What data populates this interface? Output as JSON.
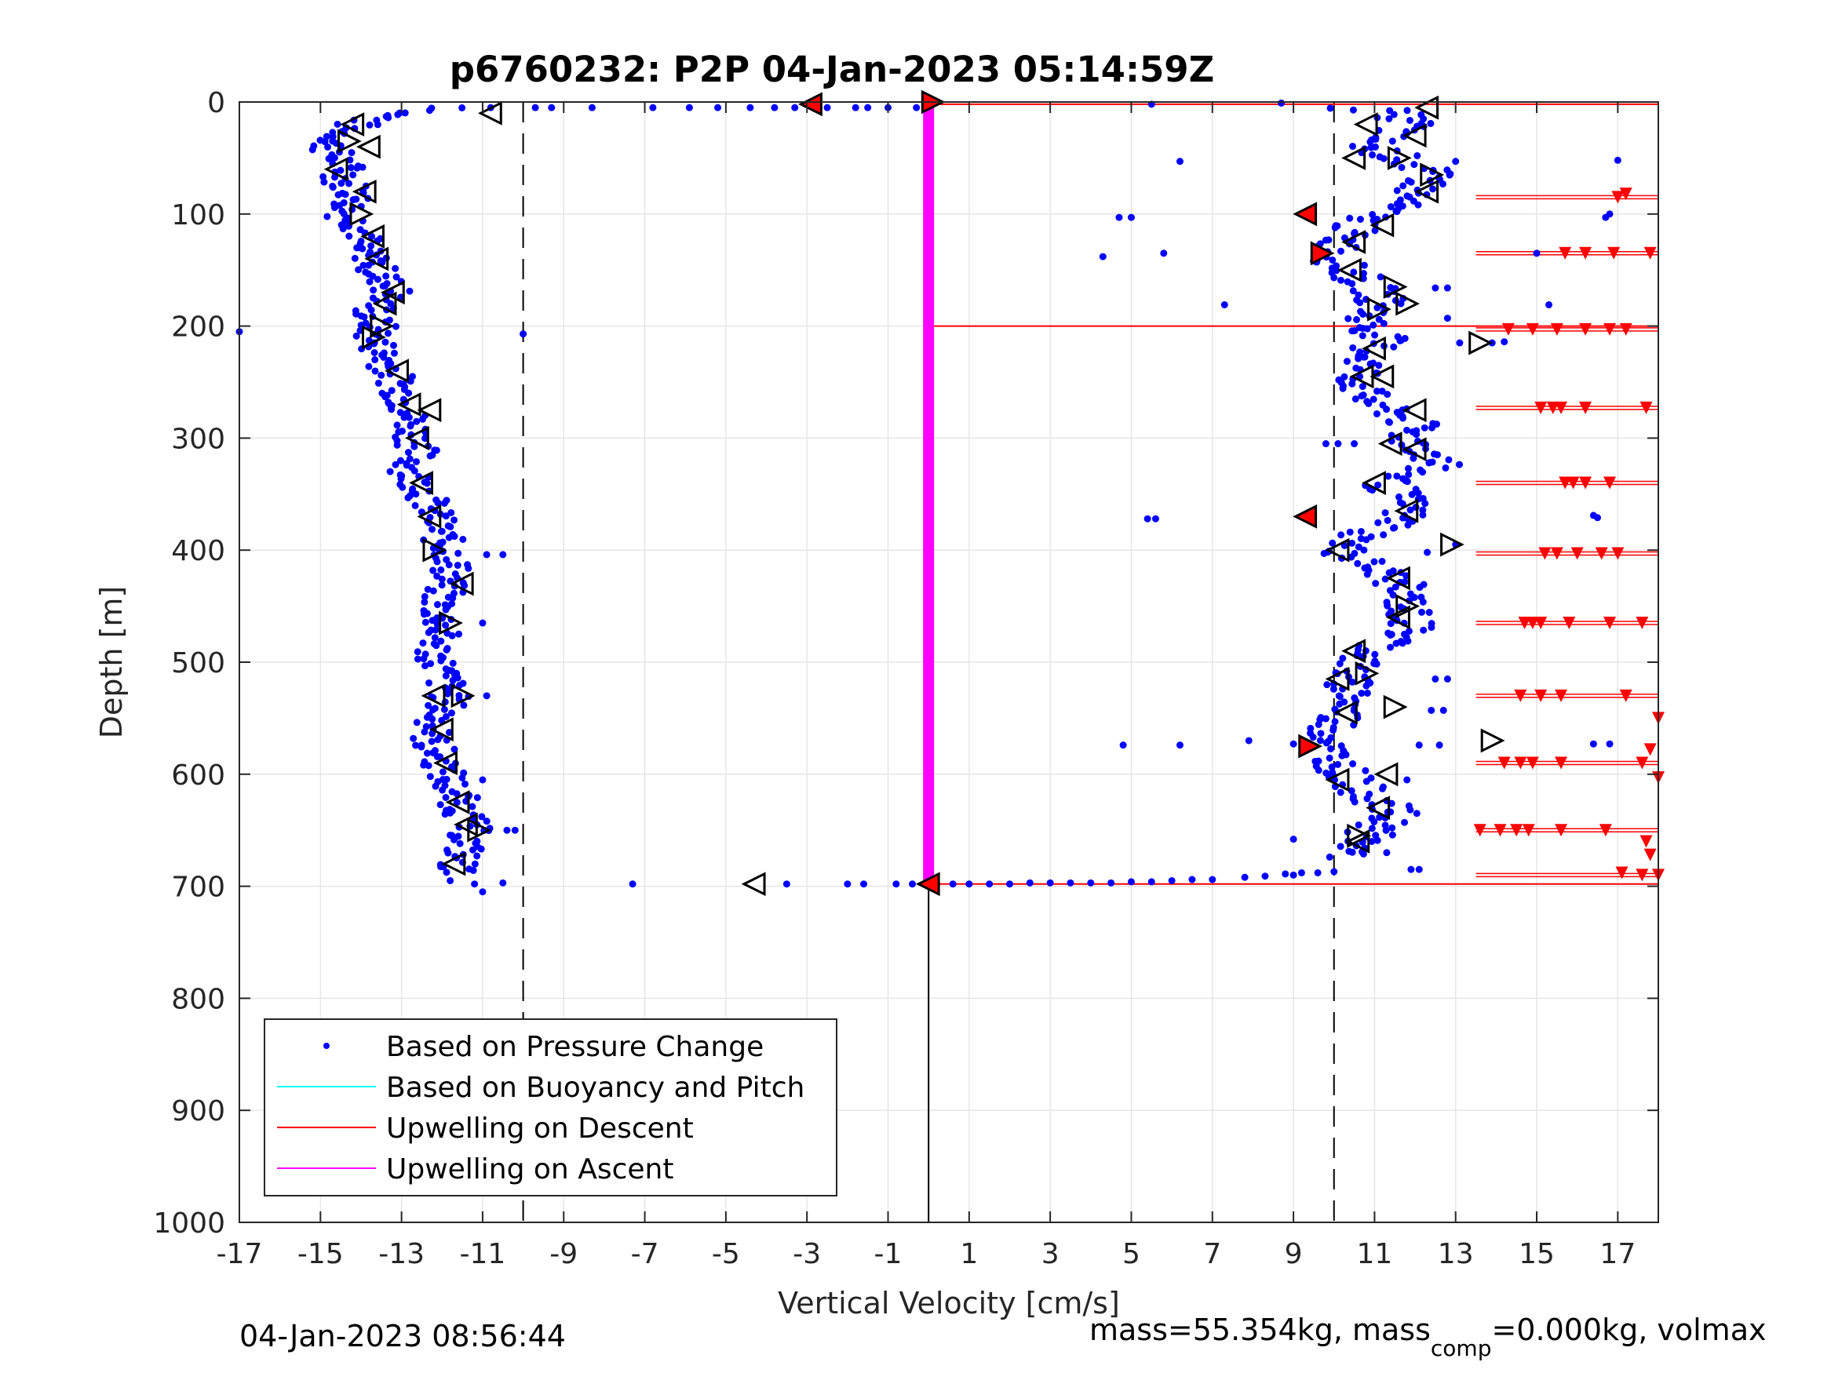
{
  "chart_data": {
    "type": "scatter",
    "title": "p6760232: P2P 04-Jan-2023 05:14:59Z",
    "xlabel": "Vertical Velocity [cm/s]",
    "ylabel": "Depth [m]",
    "xlim": [
      -17,
      18
    ],
    "ylim": [
      0,
      1000
    ],
    "y_reversed": true,
    "xticks": [
      -17,
      -15,
      -13,
      -11,
      -9,
      -7,
      -5,
      -3,
      -1,
      1,
      3,
      5,
      7,
      9,
      11,
      13,
      15,
      17
    ],
    "yticks": [
      0,
      100,
      200,
      300,
      400,
      500,
      600,
      700,
      800,
      900,
      1000
    ],
    "grid": true,
    "legend_position": "bottom-left",
    "colors": {
      "pressure": "#0000ff",
      "buoyancy": "#00ffff",
      "upwelling_descent": "#ff0000",
      "upwelling_ascent": "#ff00ff",
      "marker_fill": "#ffffff",
      "marker_stroke": "#000000"
    },
    "legend": [
      {
        "label": "Based on Pressure Change",
        "style": "dot",
        "color": "#0000ff"
      },
      {
        "label": "Based on Buoyancy and Pitch",
        "style": "line",
        "color": "#00ffff"
      },
      {
        "label": "Upwelling on Descent",
        "style": "line",
        "color": "#ff0000"
      },
      {
        "label": "Upwelling on Ascent",
        "style": "line",
        "color": "#ff00ff"
      }
    ],
    "reference_lines": {
      "dashed_x": [
        -10,
        10
      ],
      "solid_x": 0,
      "solid_x_ymin": 700
    },
    "upwelling_ascent": {
      "x": 0,
      "y_range": [
        0,
        700
      ]
    },
    "upwelling_descent_lines": [
      2,
      698,
      200
    ],
    "descent_profile": [
      [
        -11.5,
        5
      ],
      [
        -13,
        10
      ],
      [
        -13.5,
        15
      ],
      [
        -14.2,
        20
      ],
      [
        -14.5,
        30
      ],
      [
        -14.8,
        40
      ],
      [
        -14.6,
        50
      ],
      [
        -14.3,
        60
      ],
      [
        -14.5,
        70
      ],
      [
        -14.1,
        80
      ],
      [
        -14.2,
        90
      ],
      [
        -14.4,
        100
      ],
      [
        -14,
        110
      ],
      [
        -13.9,
        120
      ],
      [
        -14.1,
        130
      ],
      [
        -13.7,
        140
      ],
      [
        -13.6,
        150
      ],
      [
        -13.4,
        160
      ],
      [
        -13.2,
        170
      ],
      [
        -13.5,
        180
      ],
      [
        -13.8,
        190
      ],
      [
        -13.6,
        200
      ],
      [
        -13.7,
        210
      ],
      [
        -13.4,
        230
      ],
      [
        -13.1,
        250
      ],
      [
        -12.9,
        270
      ],
      [
        -12.7,
        290
      ],
      [
        -12.6,
        310
      ],
      [
        -12.8,
        330
      ],
      [
        -12.4,
        350
      ],
      [
        -12.2,
        370
      ],
      [
        -12,
        390
      ],
      [
        -11.7,
        410
      ],
      [
        -11.9,
        430
      ],
      [
        -12.1,
        450
      ],
      [
        -12,
        470
      ],
      [
        -12.2,
        490
      ],
      [
        -12,
        510
      ],
      [
        -11.8,
        530
      ],
      [
        -12.1,
        550
      ],
      [
        -12.3,
        570
      ],
      [
        -12,
        590
      ],
      [
        -11.8,
        610
      ],
      [
        -11.5,
        630
      ],
      [
        -11.3,
        650
      ],
      [
        -11.5,
        670
      ],
      [
        -11.7,
        690
      ]
    ],
    "ascent_profile": [
      [
        10.5,
        5
      ],
      [
        11.5,
        10
      ],
      [
        12,
        20
      ],
      [
        11.2,
        30
      ],
      [
        10.8,
        40
      ],
      [
        11.6,
        50
      ],
      [
        12.2,
        60
      ],
      [
        12.4,
        70
      ],
      [
        12,
        80
      ],
      [
        11.6,
        90
      ],
      [
        11,
        100
      ],
      [
        10.6,
        110
      ],
      [
        10.2,
        120
      ],
      [
        10.1,
        130
      ],
      [
        10,
        140
      ],
      [
        10.3,
        150
      ],
      [
        10.7,
        160
      ],
      [
        11.1,
        170
      ],
      [
        11.2,
        180
      ],
      [
        10.9,
        190
      ],
      [
        10.8,
        200
      ],
      [
        11.2,
        210
      ],
      [
        10.8,
        230
      ],
      [
        10.6,
        250
      ],
      [
        10.8,
        265
      ],
      [
        11.6,
        280
      ],
      [
        12,
        290
      ],
      [
        11.8,
        300
      ],
      [
        12.3,
        310
      ],
      [
        12.5,
        325
      ],
      [
        11.3,
        340
      ],
      [
        11.8,
        360
      ],
      [
        11.6,
        375
      ],
      [
        10.5,
        390
      ],
      [
        10.2,
        400
      ],
      [
        10.6,
        410
      ],
      [
        11.2,
        420
      ],
      [
        11.6,
        430
      ],
      [
        11.8,
        450
      ],
      [
        11.9,
        470
      ],
      [
        11.5,
        480
      ],
      [
        11,
        490
      ],
      [
        10.6,
        500
      ],
      [
        10.3,
        515
      ],
      [
        10.5,
        530
      ],
      [
        10.2,
        545
      ],
      [
        10,
        560
      ],
      [
        9.8,
        575
      ],
      [
        10.1,
        590
      ],
      [
        10.3,
        600
      ],
      [
        10.7,
        615
      ],
      [
        11.1,
        625
      ],
      [
        11.5,
        635
      ],
      [
        11.2,
        645
      ],
      [
        10.8,
        655
      ],
      [
        10.5,
        665
      ],
      [
        10.4,
        675
      ]
    ],
    "surface_points": [
      [
        -10.8,
        5
      ],
      [
        -9.7,
        5
      ],
      [
        -9.3,
        5
      ],
      [
        -8.3,
        5
      ],
      [
        -6.8,
        5
      ],
      [
        -5.9,
        5
      ],
      [
        -5.2,
        5
      ],
      [
        -4.4,
        5
      ],
      [
        -3.8,
        5
      ],
      [
        -3.3,
        5
      ],
      [
        -2.5,
        5
      ],
      [
        -1.8,
        5
      ],
      [
        -1.5,
        5
      ],
      [
        -1,
        5
      ],
      [
        -0.3,
        5
      ],
      [
        0,
        0
      ]
    ],
    "bottom_points": [
      [
        -11.8,
        695
      ],
      [
        -11.2,
        698
      ],
      [
        -7.3,
        698
      ],
      [
        -3.5,
        698
      ],
      [
        -2,
        698
      ],
      [
        -1.6,
        698
      ],
      [
        -0.8,
        698
      ],
      [
        -0.4,
        698
      ],
      [
        0.2,
        698
      ],
      [
        0.6,
        698
      ],
      [
        1,
        698
      ],
      [
        1.5,
        698
      ],
      [
        2,
        698
      ],
      [
        2.5,
        697
      ],
      [
        3,
        697
      ],
      [
        3.5,
        697
      ],
      [
        4,
        697
      ],
      [
        4.5,
        697
      ],
      [
        5,
        696
      ],
      [
        5.5,
        696
      ],
      [
        6,
        695
      ],
      [
        6.5,
        694
      ],
      [
        7,
        694
      ],
      [
        7.8,
        692
      ],
      [
        8.3,
        691
      ],
      [
        8.8,
        689
      ],
      [
        9.2,
        688
      ],
      [
        9.6,
        688
      ],
      [
        10,
        687
      ],
      [
        11.9,
        685
      ]
    ],
    "outlier_points": [
      [
        -17,
        205
      ],
      [
        -10,
        207
      ],
      [
        -10.2,
        650
      ],
      [
        -10.4,
        650
      ],
      [
        -10.5,
        404
      ],
      [
        -10.9,
        404
      ],
      [
        -11,
        465
      ],
      [
        -10.9,
        530
      ],
      [
        -11,
        605
      ],
      [
        -11,
        705
      ],
      [
        -10.5,
        697
      ],
      [
        4.3,
        138
      ],
      [
        4.7,
        103
      ],
      [
        5,
        103
      ],
      [
        5.5,
        2
      ],
      [
        6.2,
        53
      ],
      [
        5.8,
        135
      ],
      [
        7.3,
        181
      ],
      [
        8.7,
        1
      ],
      [
        5.4,
        372
      ],
      [
        5.6,
        372
      ],
      [
        4.8,
        574
      ],
      [
        6.2,
        574
      ],
      [
        7.9,
        570
      ],
      [
        9,
        573
      ],
      [
        9,
        658
      ],
      [
        9,
        690
      ],
      [
        12.8,
        193
      ],
      [
        13.1,
        215
      ],
      [
        13.9,
        215
      ],
      [
        14.2,
        214
      ],
      [
        12.8,
        166
      ],
      [
        12.5,
        166
      ],
      [
        13,
        53
      ],
      [
        15,
        135
      ],
      [
        15.3,
        181
      ],
      [
        16.4,
        369
      ],
      [
        16.5,
        371
      ],
      [
        17,
        52
      ],
      [
        16.8,
        100
      ],
      [
        16.7,
        103
      ],
      [
        13,
        395
      ],
      [
        12.3,
        402
      ],
      [
        12.5,
        515
      ],
      [
        12.8,
        515
      ],
      [
        12.4,
        543
      ],
      [
        12.7,
        543
      ],
      [
        12.6,
        574
      ],
      [
        12.1,
        574
      ],
      [
        11.8,
        605
      ],
      [
        11.3,
        670
      ],
      [
        12.1,
        685
      ],
      [
        16.4,
        573
      ],
      [
        16.8,
        573
      ],
      [
        10.5,
        305
      ],
      [
        10.1,
        305
      ],
      [
        9.8,
        305
      ]
    ],
    "descent_markers_up": [
      [
        -10.8,
        10
      ],
      [
        -14.2,
        20
      ],
      [
        -13.8,
        40
      ],
      [
        -14.6,
        60
      ],
      [
        -13.9,
        80
      ],
      [
        -13.7,
        120
      ],
      [
        -13.6,
        140
      ],
      [
        -13.2,
        170
      ],
      [
        -13.4,
        180
      ],
      [
        -13.1,
        240
      ],
      [
        -12.8,
        270
      ],
      [
        -12.3,
        275
      ],
      [
        -12.6,
        300
      ],
      [
        -12.5,
        340
      ],
      [
        -12.3,
        370
      ],
      [
        -11.5,
        430
      ],
      [
        -12.2,
        530
      ],
      [
        -12,
        560
      ],
      [
        -11.9,
        590
      ],
      [
        -11.6,
        625
      ],
      [
        -11.4,
        645
      ],
      [
        -11.7,
        680
      ],
      [
        -4.3,
        698
      ]
    ],
    "descent_markers_down": [
      [
        -14.3,
        35
      ],
      [
        -14,
        100
      ],
      [
        -13.5,
        200
      ],
      [
        -13.7,
        210
      ],
      [
        -12.2,
        400
      ],
      [
        -11.8,
        465
      ],
      [
        -11.5,
        530
      ],
      [
        -11.1,
        650
      ]
    ],
    "ascent_markers_up": [
      [
        12.3,
        5
      ],
      [
        10.8,
        20
      ],
      [
        12,
        30
      ],
      [
        10.5,
        50
      ],
      [
        12.3,
        80
      ],
      [
        11.2,
        110
      ],
      [
        10.5,
        125
      ],
      [
        10.4,
        150
      ],
      [
        11,
        220
      ],
      [
        10.7,
        245
      ],
      [
        11.2,
        245
      ],
      [
        12,
        275
      ],
      [
        11.4,
        305
      ],
      [
        12,
        310
      ],
      [
        11,
        340
      ],
      [
        11.8,
        365
      ],
      [
        10.1,
        400
      ],
      [
        11.6,
        425
      ],
      [
        11.6,
        460
      ],
      [
        10.5,
        490
      ],
      [
        10.1,
        515
      ],
      [
        10.3,
        545
      ],
      [
        10.1,
        605
      ],
      [
        11.1,
        630
      ],
      [
        10.6,
        660
      ],
      [
        11.3,
        600
      ]
    ],
    "ascent_markers_down": [
      [
        11.6,
        50
      ],
      [
        12.4,
        65
      ],
      [
        11.5,
        165
      ],
      [
        11.8,
        180
      ],
      [
        13.6,
        215
      ],
      [
        11.1,
        185
      ],
      [
        12.9,
        395
      ],
      [
        11.8,
        450
      ],
      [
        10.8,
        510
      ],
      [
        11.5,
        540
      ],
      [
        13.9,
        570
      ],
      [
        10.6,
        655
      ]
    ],
    "red_markers": [
      [
        -2.9,
        2
      ],
      [
        0.1,
        0
      ],
      [
        9.3,
        100
      ],
      [
        9.7,
        135
      ],
      [
        9.3,
        370
      ],
      [
        9.4,
        575
      ],
      [
        0,
        698
      ]
    ],
    "descent_triangles": [
      [
        17,
        85
      ],
      [
        17.2,
        82
      ],
      [
        15.7,
        135
      ],
      [
        16.2,
        135
      ],
      [
        16.9,
        135
      ],
      [
        17.8,
        135
      ],
      [
        14.3,
        203
      ],
      [
        14.9,
        203
      ],
      [
        15.5,
        203
      ],
      [
        16.2,
        203
      ],
      [
        16.8,
        203
      ],
      [
        17.2,
        203
      ],
      [
        15.1,
        273
      ],
      [
        15.4,
        273
      ],
      [
        15.6,
        273
      ],
      [
        16.2,
        273
      ],
      [
        17.7,
        273
      ],
      [
        15.7,
        340
      ],
      [
        15.9,
        340
      ],
      [
        16.2,
        340
      ],
      [
        16.8,
        340
      ],
      [
        15.2,
        403
      ],
      [
        15.5,
        403
      ],
      [
        16,
        403
      ],
      [
        16.6,
        403
      ],
      [
        17,
        403
      ],
      [
        14.7,
        465
      ],
      [
        14.9,
        465
      ],
      [
        15.1,
        465
      ],
      [
        15.8,
        465
      ],
      [
        16.8,
        465
      ],
      [
        17.6,
        465
      ],
      [
        14.6,
        530
      ],
      [
        15.1,
        530
      ],
      [
        15.6,
        530
      ],
      [
        17.2,
        530
      ],
      [
        14.2,
        590
      ],
      [
        14.6,
        590
      ],
      [
        14.9,
        590
      ],
      [
        15.6,
        590
      ],
      [
        17.6,
        590
      ],
      [
        13.6,
        650
      ],
      [
        14.1,
        650
      ],
      [
        14.5,
        650
      ],
      [
        14.8,
        650
      ],
      [
        15.6,
        650
      ],
      [
        16.7,
        650
      ],
      [
        18,
        550
      ],
      [
        17.8,
        578
      ],
      [
        18,
        603
      ],
      [
        17.7,
        660
      ],
      [
        17.8,
        672
      ],
      [
        17.6,
        690
      ],
      [
        18,
        690
      ],
      [
        17.1,
        688
      ]
    ],
    "descent_triangle_lines": [
      85,
      135,
      203,
      273,
      340,
      403,
      465,
      530,
      590,
      650,
      690
    ]
  },
  "footer": {
    "timestamp": "04-Jan-2023 08:56:44",
    "mass_prefix": "mass=55.354kg, mass",
    "mass_sub": "comp",
    "mass_suffix": "=0.000kg, volmax"
  }
}
